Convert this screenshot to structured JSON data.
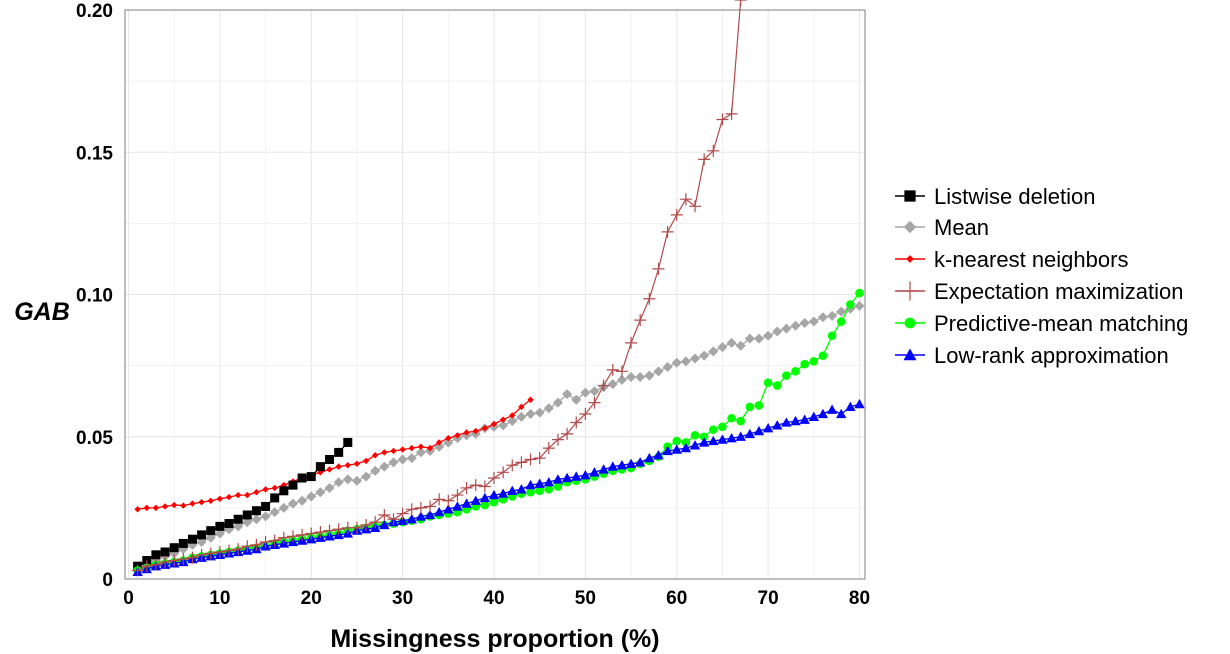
{
  "chart_data": {
    "type": "line",
    "title": "",
    "xlabel": "Missingness proportion (%)",
    "ylabel": "GAB",
    "xlim": [
      0,
      80
    ],
    "ylim": [
      0,
      0.2
    ],
    "xticks": [
      0,
      10,
      20,
      30,
      40,
      50,
      60,
      70,
      80
    ],
    "xtick_labels": [
      "0",
      "10",
      "20",
      "30",
      "40",
      "50",
      "60",
      "70",
      "80"
    ],
    "yticks": [
      0,
      0.05,
      0.1,
      0.15,
      0.2
    ],
    "ytick_labels": [
      "0",
      "0.05",
      "0.10",
      "0.15",
      "0.20"
    ],
    "grid": true,
    "legend_position": "right",
    "series": [
      {
        "name": "Listwise deletion",
        "color": "#000000",
        "marker": "square",
        "x": [
          1,
          2,
          3,
          4,
          5,
          6,
          7,
          8,
          9,
          10,
          11,
          12,
          13,
          14,
          15,
          16,
          17,
          18,
          19,
          20,
          21,
          22,
          23,
          24
        ],
        "y": [
          0.0045,
          0.0065,
          0.0085,
          0.0095,
          0.011,
          0.0125,
          0.014,
          0.0155,
          0.017,
          0.0185,
          0.0195,
          0.021,
          0.0225,
          0.024,
          0.0255,
          0.0285,
          0.031,
          0.033,
          0.0355,
          0.036,
          0.0395,
          0.042,
          0.0445,
          0.048
        ]
      },
      {
        "name": "Mean",
        "color": "#a6a6a6",
        "marker": "diamond",
        "x": [
          1,
          2,
          3,
          4,
          5,
          6,
          7,
          8,
          9,
          10,
          11,
          12,
          13,
          14,
          15,
          16,
          17,
          18,
          19,
          20,
          21,
          22,
          23,
          24,
          25,
          26,
          27,
          28,
          29,
          30,
          31,
          32,
          33,
          34,
          35,
          36,
          37,
          38,
          39,
          40,
          41,
          42,
          43,
          44,
          45,
          46,
          47,
          48,
          49,
          50,
          51,
          52,
          53,
          54,
          55,
          56,
          57,
          58,
          59,
          60,
          61,
          62,
          63,
          64,
          65,
          66,
          67,
          68,
          69,
          70,
          71,
          72,
          73,
          74,
          75,
          76,
          77,
          78,
          79,
          80
        ],
        "y": [
          0.003,
          0.0045,
          0.0065,
          0.008,
          0.009,
          0.0105,
          0.012,
          0.013,
          0.0145,
          0.016,
          0.0175,
          0.0185,
          0.02,
          0.021,
          0.022,
          0.0235,
          0.025,
          0.0265,
          0.0275,
          0.029,
          0.0305,
          0.032,
          0.034,
          0.035,
          0.0345,
          0.036,
          0.038,
          0.0395,
          0.041,
          0.042,
          0.0425,
          0.0445,
          0.045,
          0.0465,
          0.048,
          0.0495,
          0.0505,
          0.051,
          0.053,
          0.0535,
          0.054,
          0.0555,
          0.057,
          0.058,
          0.0585,
          0.06,
          0.062,
          0.065,
          0.063,
          0.0655,
          0.066,
          0.0675,
          0.0685,
          0.07,
          0.071,
          0.071,
          0.0715,
          0.073,
          0.0745,
          0.076,
          0.0765,
          0.0775,
          0.0785,
          0.08,
          0.0815,
          0.083,
          0.082,
          0.0845,
          0.0845,
          0.0855,
          0.087,
          0.088,
          0.089,
          0.09,
          0.0905,
          0.092,
          0.0925,
          0.094,
          0.095,
          0.096
        ]
      },
      {
        "name": "k-nearest neighbors",
        "color": "#ff0000",
        "marker": "small-diamond",
        "x": [
          1,
          2,
          3,
          4,
          5,
          6,
          7,
          8,
          9,
          10,
          11,
          12,
          13,
          14,
          15,
          16,
          17,
          18,
          19,
          20,
          21,
          22,
          23,
          24,
          25,
          26,
          27,
          28,
          29,
          30,
          31,
          32,
          33,
          34,
          35,
          36,
          37,
          38,
          39,
          40,
          41,
          42,
          43,
          44
        ],
        "y": [
          0.0245,
          0.025,
          0.025,
          0.0255,
          0.026,
          0.0258,
          0.0265,
          0.027,
          0.0275,
          0.0282,
          0.0288,
          0.0295,
          0.0295,
          0.0305,
          0.0315,
          0.032,
          0.033,
          0.0343,
          0.0355,
          0.0365,
          0.0375,
          0.0385,
          0.0395,
          0.04,
          0.0405,
          0.0415,
          0.0435,
          0.0445,
          0.045,
          0.0455,
          0.046,
          0.0465,
          0.046,
          0.048,
          0.0495,
          0.0505,
          0.0515,
          0.052,
          0.053,
          0.0545,
          0.056,
          0.0575,
          0.0605,
          0.063
        ]
      },
      {
        "name": "Expectation maximization",
        "color": "#b24a4a",
        "marker": "plus",
        "x": [
          1,
          2,
          3,
          4,
          5,
          6,
          7,
          8,
          9,
          10,
          11,
          12,
          13,
          14,
          15,
          16,
          17,
          18,
          19,
          20,
          21,
          22,
          23,
          24,
          25,
          26,
          27,
          28,
          29,
          30,
          31,
          32,
          33,
          34,
          35,
          36,
          37,
          38,
          39,
          40,
          41,
          42,
          43,
          44,
          45,
          46,
          47,
          48,
          49,
          50,
          51,
          52,
          53,
          54,
          55,
          56,
          57,
          58,
          59,
          60,
          61,
          62,
          63,
          64,
          65,
          66,
          67
        ],
        "y": [
          0.003,
          0.0045,
          0.005,
          0.006,
          0.0065,
          0.007,
          0.0075,
          0.0085,
          0.009,
          0.0095,
          0.01,
          0.0105,
          0.0115,
          0.012,
          0.013,
          0.0135,
          0.0145,
          0.015,
          0.0155,
          0.016,
          0.0165,
          0.017,
          0.0175,
          0.018,
          0.018,
          0.019,
          0.02,
          0.0225,
          0.021,
          0.023,
          0.0245,
          0.025,
          0.0255,
          0.028,
          0.0275,
          0.0295,
          0.032,
          0.033,
          0.0325,
          0.0355,
          0.0375,
          0.04,
          0.041,
          0.042,
          0.0425,
          0.046,
          0.049,
          0.051,
          0.055,
          0.058,
          0.062,
          0.068,
          0.0735,
          0.073,
          0.083,
          0.091,
          0.0985,
          0.109,
          0.122,
          0.128,
          0.1335,
          0.131,
          0.1475,
          0.1505,
          0.1615,
          0.1635,
          0.2035
        ]
      },
      {
        "name": "Predictive-mean matching",
        "color": "#00ff00",
        "marker": "circle",
        "x": [
          1,
          2,
          3,
          4,
          5,
          6,
          7,
          8,
          9,
          10,
          11,
          12,
          13,
          14,
          15,
          16,
          17,
          18,
          19,
          20,
          21,
          22,
          23,
          24,
          25,
          26,
          27,
          28,
          29,
          30,
          31,
          32,
          33,
          34,
          35,
          36,
          37,
          38,
          39,
          40,
          41,
          42,
          43,
          44,
          45,
          46,
          47,
          48,
          49,
          50,
          51,
          52,
          53,
          54,
          55,
          56,
          57,
          58,
          59,
          60,
          61,
          62,
          63,
          64,
          65,
          66,
          67,
          68,
          69,
          70,
          71,
          72,
          73,
          74,
          75,
          76,
          77,
          78,
          79,
          80
        ],
        "y": [
          0.003,
          0.004,
          0.005,
          0.0055,
          0.006,
          0.0065,
          0.0075,
          0.008,
          0.0085,
          0.009,
          0.0095,
          0.01,
          0.0105,
          0.011,
          0.0115,
          0.0125,
          0.013,
          0.0135,
          0.014,
          0.0145,
          0.015,
          0.0155,
          0.016,
          0.017,
          0.0175,
          0.018,
          0.0185,
          0.019,
          0.0195,
          0.02,
          0.0205,
          0.021,
          0.022,
          0.0225,
          0.023,
          0.0235,
          0.0245,
          0.0255,
          0.026,
          0.027,
          0.028,
          0.029,
          0.03,
          0.0305,
          0.031,
          0.0315,
          0.0325,
          0.034,
          0.0345,
          0.035,
          0.036,
          0.037,
          0.038,
          0.0385,
          0.039,
          0.0405,
          0.0415,
          0.043,
          0.0465,
          0.0485,
          0.048,
          0.0505,
          0.05,
          0.0525,
          0.0535,
          0.0565,
          0.0555,
          0.0605,
          0.061,
          0.069,
          0.068,
          0.0715,
          0.073,
          0.0755,
          0.0765,
          0.0785,
          0.0855,
          0.0905,
          0.0965,
          0.1005
        ]
      },
      {
        "name": "Low-rank approximation",
        "color": "#0000ff",
        "marker": "triangle",
        "x": [
          1,
          2,
          3,
          4,
          5,
          6,
          7,
          8,
          9,
          10,
          11,
          12,
          13,
          14,
          15,
          16,
          17,
          18,
          19,
          20,
          21,
          22,
          23,
          24,
          25,
          26,
          27,
          28,
          29,
          30,
          31,
          32,
          33,
          34,
          35,
          36,
          37,
          38,
          39,
          40,
          41,
          42,
          43,
          44,
          45,
          46,
          47,
          48,
          49,
          50,
          51,
          52,
          53,
          54,
          55,
          56,
          57,
          58,
          59,
          60,
          61,
          62,
          63,
          64,
          65,
          66,
          67,
          68,
          69,
          70,
          71,
          72,
          73,
          74,
          75,
          76,
          77,
          78,
          79,
          80
        ],
        "y": [
          0.0025,
          0.0035,
          0.0045,
          0.005,
          0.0055,
          0.006,
          0.007,
          0.0075,
          0.008,
          0.0085,
          0.009,
          0.0095,
          0.01,
          0.0105,
          0.0115,
          0.012,
          0.0125,
          0.013,
          0.0135,
          0.014,
          0.0145,
          0.015,
          0.0155,
          0.016,
          0.017,
          0.0175,
          0.018,
          0.019,
          0.02,
          0.0205,
          0.021,
          0.022,
          0.0225,
          0.0235,
          0.0245,
          0.0255,
          0.0265,
          0.0275,
          0.0285,
          0.0295,
          0.03,
          0.031,
          0.0315,
          0.033,
          0.0335,
          0.034,
          0.035,
          0.0355,
          0.036,
          0.0365,
          0.0375,
          0.0385,
          0.0395,
          0.04,
          0.0405,
          0.041,
          0.0425,
          0.0435,
          0.045,
          0.0455,
          0.046,
          0.047,
          0.048,
          0.0485,
          0.049,
          0.0495,
          0.05,
          0.051,
          0.052,
          0.053,
          0.054,
          0.055,
          0.0555,
          0.056,
          0.057,
          0.058,
          0.0595,
          0.058,
          0.0605,
          0.0615
        ]
      }
    ]
  }
}
